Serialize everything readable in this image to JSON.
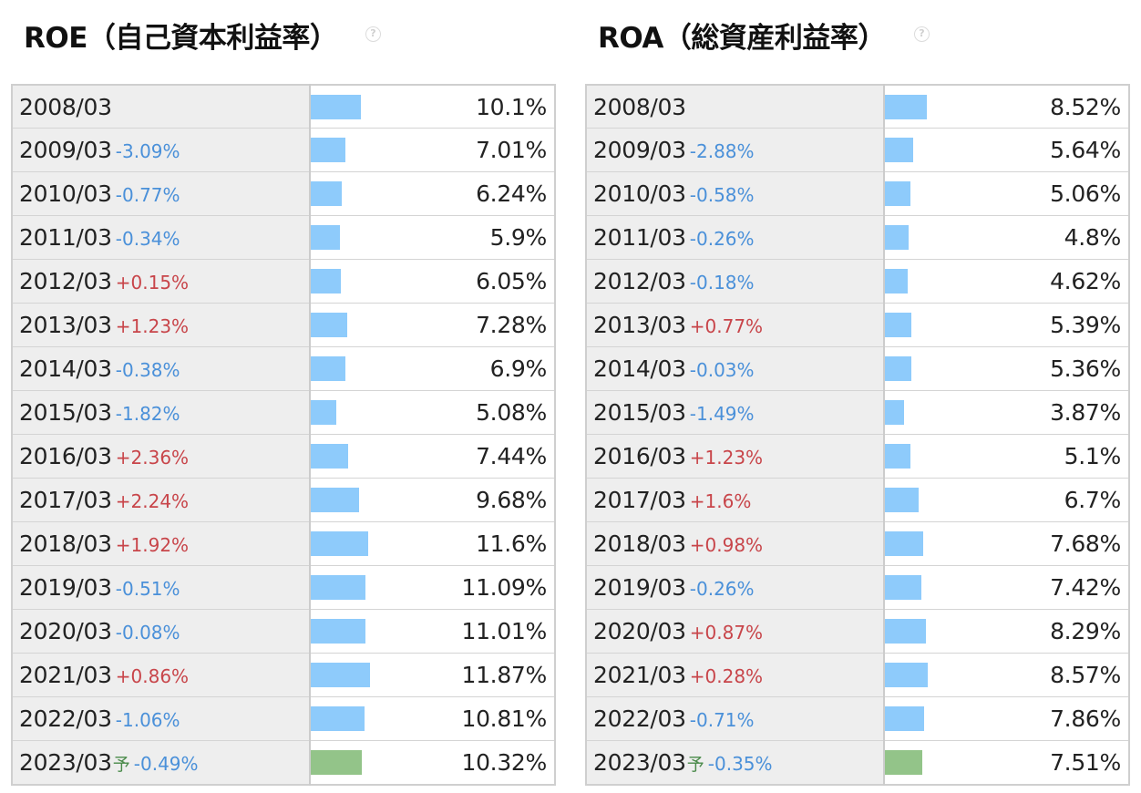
{
  "roe": {
    "title": "ROE（自己資本利益率）",
    "help_icon": "question-circle-icon",
    "rows": [
      {
        "period": "2008/03",
        "change": "",
        "value": "10.1%",
        "level": 10.1
      },
      {
        "period": "2009/03",
        "change": "-3.09%",
        "value": "7.01%",
        "level": 7.01
      },
      {
        "period": "2010/03",
        "change": "-0.77%",
        "value": "6.24%",
        "level": 6.24
      },
      {
        "period": "2011/03",
        "change": "-0.34%",
        "value": "5.9%",
        "level": 5.9
      },
      {
        "period": "2012/03",
        "change": "+0.15%",
        "value": "6.05%",
        "level": 6.05
      },
      {
        "period": "2013/03",
        "change": "+1.23%",
        "value": "7.28%",
        "level": 7.28
      },
      {
        "period": "2014/03",
        "change": "-0.38%",
        "value": "6.9%",
        "level": 6.9
      },
      {
        "period": "2015/03",
        "change": "-1.82%",
        "value": "5.08%",
        "level": 5.08
      },
      {
        "period": "2016/03",
        "change": "+2.36%",
        "value": "7.44%",
        "level": 7.44
      },
      {
        "period": "2017/03",
        "change": "+2.24%",
        "value": "9.68%",
        "level": 9.68
      },
      {
        "period": "2018/03",
        "change": "+1.92%",
        "value": "11.6%",
        "level": 11.6
      },
      {
        "period": "2019/03",
        "change": "-0.51%",
        "value": "11.09%",
        "level": 11.09
      },
      {
        "period": "2020/03",
        "change": "-0.08%",
        "value": "11.01%",
        "level": 11.01
      },
      {
        "period": "2021/03",
        "change": "+0.86%",
        "value": "11.87%",
        "level": 11.87
      },
      {
        "period": "2022/03",
        "change": "-1.06%",
        "value": "10.81%",
        "level": 10.81
      },
      {
        "period": "2023/03",
        "forecast_mark": "予",
        "change": "-0.49%",
        "value": "10.32%",
        "level": 10.32,
        "forecast": true
      }
    ]
  },
  "roa": {
    "title": "ROA（総資産利益率）",
    "help_icon": "question-circle-icon",
    "rows": [
      {
        "period": "2008/03",
        "change": "",
        "value": "8.52%",
        "level": 8.52
      },
      {
        "period": "2009/03",
        "change": "-2.88%",
        "value": "5.64%",
        "level": 5.64
      },
      {
        "period": "2010/03",
        "change": "-0.58%",
        "value": "5.06%",
        "level": 5.06
      },
      {
        "period": "2011/03",
        "change": "-0.26%",
        "value": "4.8%",
        "level": 4.8
      },
      {
        "period": "2012/03",
        "change": "-0.18%",
        "value": "4.62%",
        "level": 4.62
      },
      {
        "period": "2013/03",
        "change": "+0.77%",
        "value": "5.39%",
        "level": 5.39
      },
      {
        "period": "2014/03",
        "change": "-0.03%",
        "value": "5.36%",
        "level": 5.36
      },
      {
        "period": "2015/03",
        "change": "-1.49%",
        "value": "3.87%",
        "level": 3.87
      },
      {
        "period": "2016/03",
        "change": "+1.23%",
        "value": "5.1%",
        "level": 5.1
      },
      {
        "period": "2017/03",
        "change": "+1.6%",
        "value": "6.7%",
        "level": 6.7
      },
      {
        "period": "2018/03",
        "change": "+0.98%",
        "value": "7.68%",
        "level": 7.68
      },
      {
        "period": "2019/03",
        "change": "-0.26%",
        "value": "7.42%",
        "level": 7.42
      },
      {
        "period": "2020/03",
        "change": "+0.87%",
        "value": "8.29%",
        "level": 8.29
      },
      {
        "period": "2021/03",
        "change": "+0.28%",
        "value": "8.57%",
        "level": 8.57
      },
      {
        "period": "2022/03",
        "change": "-0.71%",
        "value": "7.86%",
        "level": 7.86
      },
      {
        "period": "2023/03",
        "forecast_mark": "予",
        "change": "-0.35%",
        "value": "7.51%",
        "level": 7.51,
        "forecast": true
      }
    ]
  },
  "colors": {
    "bar": "#8ecbfb",
    "bar_forecast": "#93c489",
    "change_up": "#c8454a",
    "change_down": "#4a90d9",
    "period_cell_bg": "#eeeeee"
  }
}
